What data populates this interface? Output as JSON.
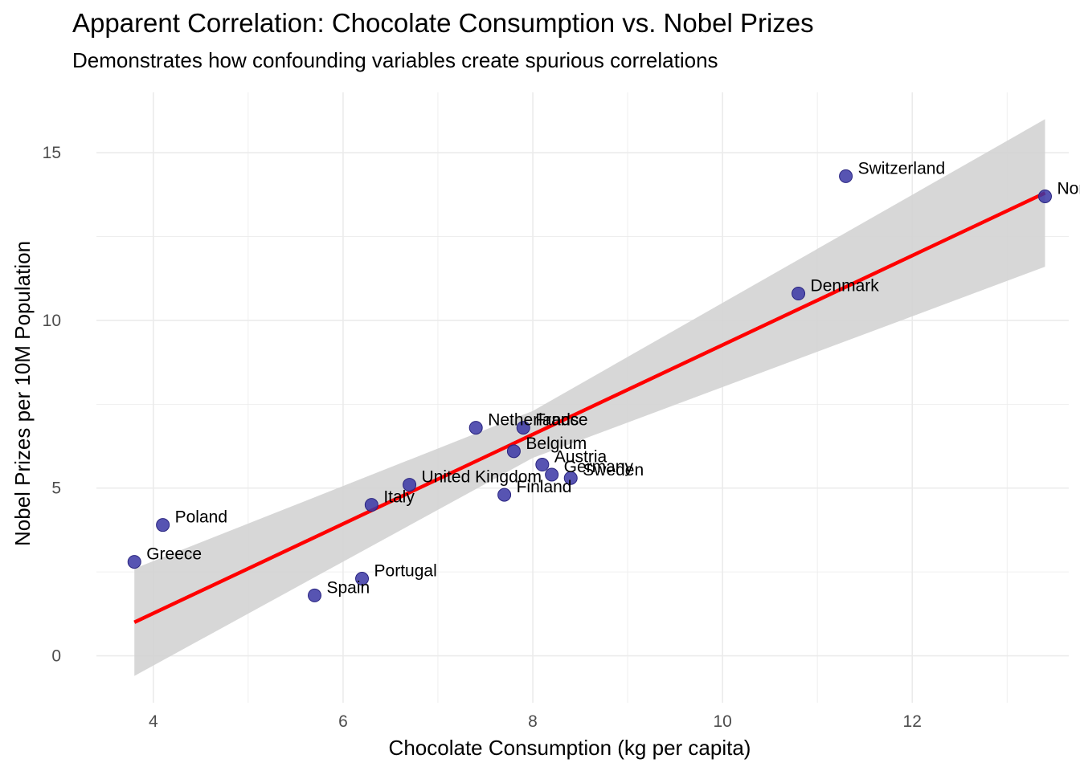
{
  "chart_data": {
    "type": "scatter",
    "title": "Apparent Correlation: Chocolate Consumption vs. Nobel Prizes",
    "subtitle": "Demonstrates how confounding variables create spurious correlations",
    "xlabel": "Chocolate Consumption (kg per capita)",
    "ylabel": "Nobel Prizes per 10M Population",
    "xlim": [
      3.4,
      13.65
    ],
    "ylim": [
      -1.4,
      16.8
    ],
    "xticks": [
      4,
      6,
      8,
      10,
      12
    ],
    "yticks": [
      0,
      5,
      10,
      15
    ],
    "grid": true,
    "points": [
      {
        "label": "Switzerland",
        "x": 11.3,
        "y": 14.3
      },
      {
        "label": "Norway",
        "x": 13.4,
        "y": 13.7
      },
      {
        "label": "Denmark",
        "x": 10.8,
        "y": 10.8
      },
      {
        "label": "Netherlands",
        "x": 7.4,
        "y": 6.8
      },
      {
        "label": "France",
        "x": 7.9,
        "y": 6.8
      },
      {
        "label": "Belgium",
        "x": 7.8,
        "y": 6.1
      },
      {
        "label": "Austria",
        "x": 8.1,
        "y": 5.7
      },
      {
        "label": "Germany",
        "x": 8.2,
        "y": 5.4
      },
      {
        "label": "Sweden",
        "x": 8.4,
        "y": 5.3
      },
      {
        "label": "United Kingdom",
        "x": 6.7,
        "y": 5.1
      },
      {
        "label": "Finland",
        "x": 7.7,
        "y": 4.8
      },
      {
        "label": "Italy",
        "x": 6.3,
        "y": 4.5
      },
      {
        "label": "Poland",
        "x": 4.1,
        "y": 3.9
      },
      {
        "label": "Greece",
        "x": 3.8,
        "y": 2.8
      },
      {
        "label": "Portugal",
        "x": 6.2,
        "y": 2.3
      },
      {
        "label": "Spain",
        "x": 5.7,
        "y": 1.8
      }
    ],
    "regression": {
      "x_start": 3.8,
      "y_start": 1.0,
      "x_end": 13.4,
      "y_end": 13.8
    },
    "confidence_band": [
      {
        "x": 3.8,
        "lower": -0.6,
        "upper": 2.6
      },
      {
        "x": 8.0,
        "lower": 5.9,
        "upper": 7.3
      },
      {
        "x": 13.4,
        "lower": 11.6,
        "upper": 16.0
      }
    ],
    "colors": {
      "point": "#3a36a4",
      "line": "#ff0000",
      "band": "#d3d3d3",
      "grid": "#ebebeb"
    }
  }
}
